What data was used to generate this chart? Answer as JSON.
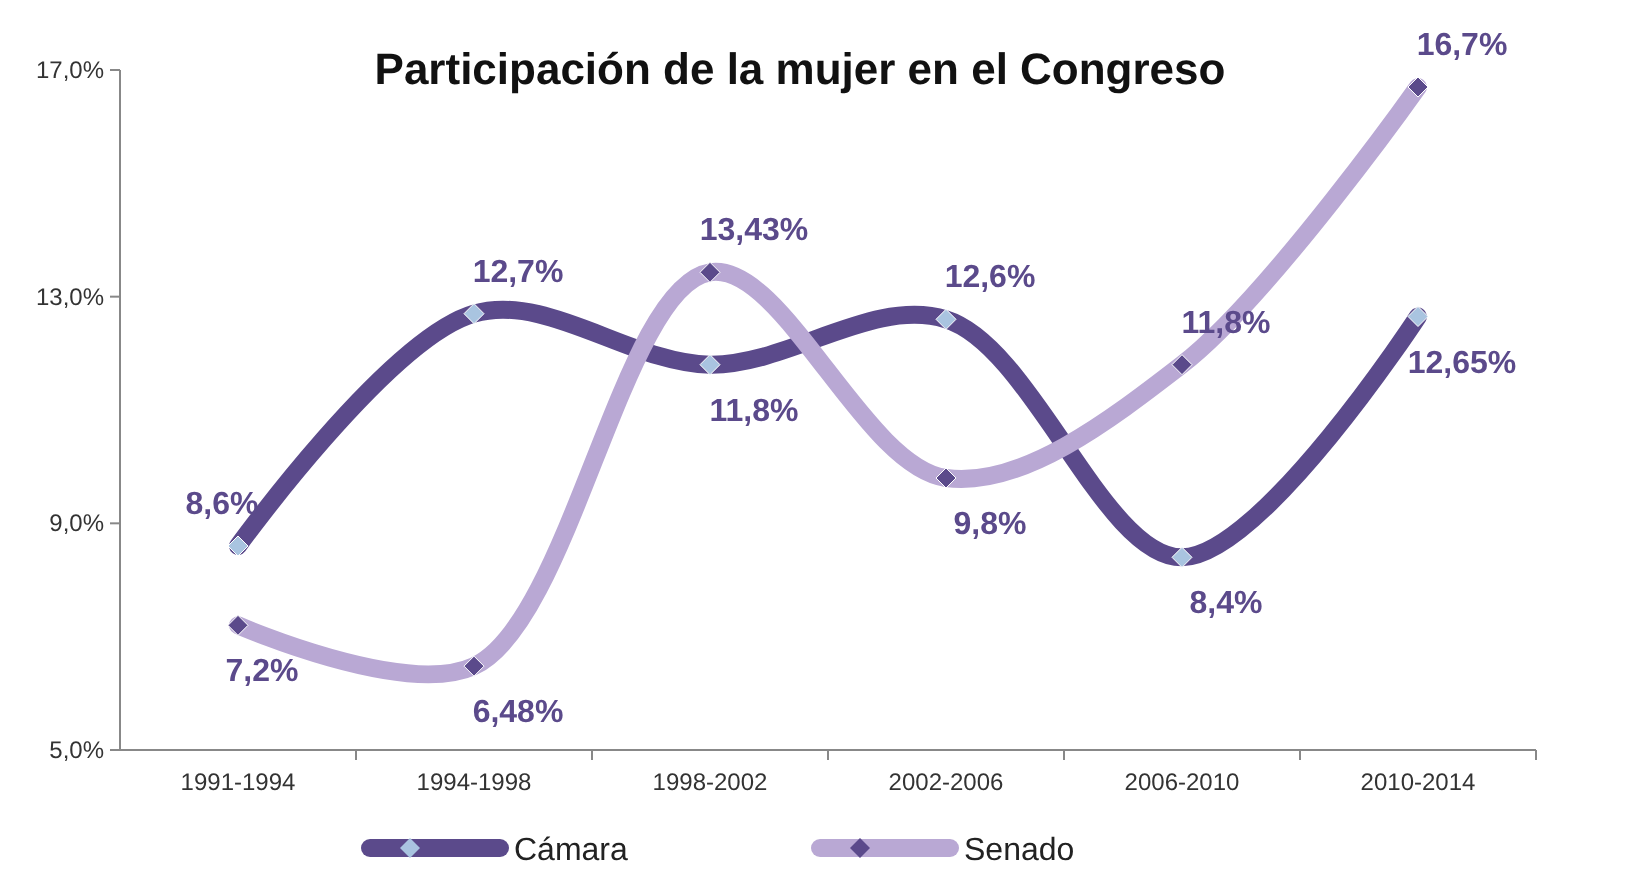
{
  "chart_data": {
    "type": "line",
    "title": "Participación de la mujer en el Congreso",
    "categories": [
      "1991-1994",
      "1994-1998",
      "1998-2002",
      "2002-2006",
      "2006-2010",
      "2010-2014"
    ],
    "series": [
      {
        "name": "Cámara",
        "color": "#5b4a8b",
        "values": [
          8.6,
          12.7,
          11.8,
          12.6,
          8.4,
          12.65
        ],
        "value_labels": [
          "8,6%",
          "12,7%",
          "11,8%",
          "12,6%",
          "8,4%",
          "12,65%"
        ]
      },
      {
        "name": "Senado",
        "color": "#b9a8d4",
        "values": [
          7.2,
          6.48,
          13.43,
          9.8,
          11.8,
          16.7
        ],
        "value_labels": [
          "7,2%",
          "6,48%",
          "13,43%",
          "9,8%",
          "11,8%",
          "16,7%"
        ]
      }
    ],
    "ylim": [
      5,
      17
    ],
    "yticks": [
      {
        "value": 5,
        "label": "5,0%"
      },
      {
        "value": 9,
        "label": "9,0%"
      },
      {
        "value": 13,
        "label": "13,0%"
      },
      {
        "value": 17,
        "label": "17,0%"
      }
    ],
    "grid": false,
    "legend": "bottom",
    "marker": "diamond",
    "line_style": "solid"
  }
}
